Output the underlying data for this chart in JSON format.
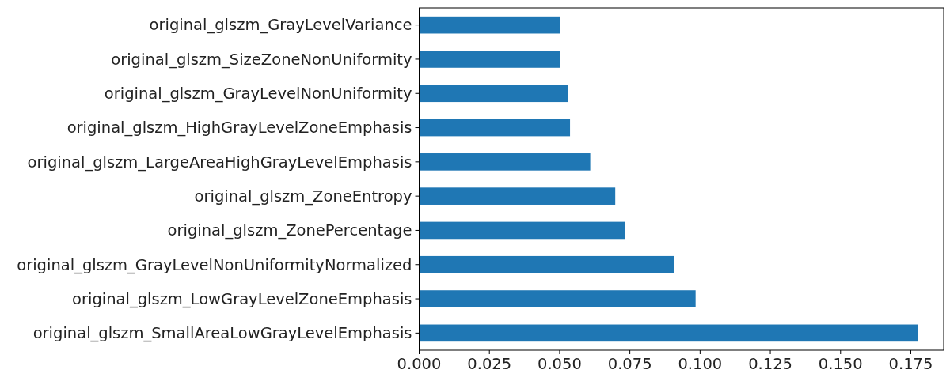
{
  "chart_data": {
    "type": "bar",
    "orientation": "horizontal",
    "categories": [
      "original_glszm_GrayLevelVariance",
      "original_glszm_SizeZoneNonUniformity",
      "original_glszm_GrayLevelNonUniformity",
      "original_glszm_HighGrayLevelZoneEmphasis",
      "original_glszm_LargeAreaHighGrayLevelEmphasis",
      "original_glszm_ZoneEntropy",
      "original_glszm_ZonePercentage",
      "original_glszm_GrayLevelNonUniformityNormalized",
      "original_glszm_LowGrayLevelZoneEmphasis",
      "original_glszm_SmallAreaLowGrayLevelEmphasis"
    ],
    "values": [
      0.0503,
      0.0503,
      0.0531,
      0.0537,
      0.0609,
      0.0698,
      0.0732,
      0.0906,
      0.0984,
      0.1775
    ],
    "color": "#1f77b4",
    "xlim": [
      0,
      0.1867
    ],
    "xticks": [
      {
        "value": 0,
        "label": "0.000"
      },
      {
        "value": 0.025,
        "label": "0.025"
      },
      {
        "value": 0.05,
        "label": "0.050"
      },
      {
        "value": 0.075,
        "label": "0.075"
      },
      {
        "value": 0.1,
        "label": "0.100"
      },
      {
        "value": 0.125,
        "label": "0.125"
      },
      {
        "value": 0.15,
        "label": "0.150"
      },
      {
        "value": 0.175,
        "label": "0.175"
      }
    ],
    "grid": false
  }
}
